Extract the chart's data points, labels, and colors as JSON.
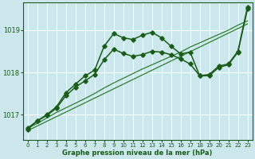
{
  "background_color": "#cce8ed",
  "plot_bg_color": "#cce8ed",
  "grid_color": "#aacccc",
  "xlabel": "Graphe pression niveau de la mer (hPa)",
  "xlim": [
    -0.5,
    23.5
  ],
  "ylim": [
    1016.4,
    1019.65
  ],
  "yticks": [
    1017,
    1018,
    1019
  ],
  "xticks": [
    0,
    1,
    2,
    3,
    4,
    5,
    6,
    7,
    8,
    9,
    10,
    11,
    12,
    13,
    14,
    15,
    16,
    17,
    18,
    19,
    20,
    21,
    22,
    23
  ],
  "series": [
    {
      "x": [
        0,
        1,
        2,
        3,
        4,
        5,
        6,
        7,
        8,
        9,
        10,
        11,
        12,
        13,
        14,
        15,
        16,
        17,
        18,
        19,
        20,
        21,
        22,
        23
      ],
      "y": [
        1016.62,
        1016.73,
        1016.84,
        1016.95,
        1017.06,
        1017.17,
        1017.28,
        1017.39,
        1017.5,
        1017.61,
        1017.72,
        1017.83,
        1017.94,
        1018.05,
        1018.16,
        1018.27,
        1018.38,
        1018.49,
        1018.6,
        1018.71,
        1018.82,
        1018.93,
        1019.04,
        1019.15
      ],
      "marker": null,
      "linewidth": 0.9,
      "color": "#2e7d2e",
      "linestyle": "-"
    },
    {
      "x": [
        0,
        1,
        2,
        3,
        4,
        5,
        6,
        7,
        8,
        9,
        10,
        11,
        12,
        13,
        14,
        15,
        16,
        17,
        18,
        19,
        20,
        21,
        22,
        23
      ],
      "y": [
        1016.68,
        1016.79,
        1016.92,
        1017.05,
        1017.16,
        1017.27,
        1017.38,
        1017.5,
        1017.63,
        1017.75,
        1017.86,
        1017.97,
        1018.08,
        1018.18,
        1018.28,
        1018.38,
        1018.48,
        1018.6,
        1018.7,
        1018.8,
        1018.9,
        1019.0,
        1019.12,
        1019.22
      ],
      "marker": null,
      "linewidth": 0.9,
      "color": "#2e7d2e",
      "linestyle": "-"
    },
    {
      "x": [
        0,
        1,
        2,
        3,
        4,
        5,
        6,
        7,
        8,
        9,
        10,
        11,
        12,
        13,
        14,
        15,
        16,
        17,
        18,
        19,
        20,
        21,
        22,
        23
      ],
      "y": [
        1016.68,
        1016.85,
        1016.98,
        1017.15,
        1017.45,
        1017.65,
        1017.8,
        1017.95,
        1018.3,
        1018.55,
        1018.45,
        1018.38,
        1018.42,
        1018.5,
        1018.48,
        1018.42,
        1018.32,
        1018.2,
        1017.92,
        1017.95,
        1018.15,
        1018.2,
        1018.5,
        1019.55
      ],
      "marker": "D",
      "markersize": 2.8,
      "linewidth": 1.1,
      "color": "#1a5c1a",
      "linestyle": "-"
    },
    {
      "x": [
        0,
        1,
        2,
        3,
        4,
        5,
        6,
        7,
        8,
        9,
        10,
        11,
        12,
        13,
        14,
        15,
        16,
        17,
        18,
        19,
        20,
        21,
        22,
        23
      ],
      "y": [
        1016.65,
        1016.85,
        1017.0,
        1017.18,
        1017.52,
        1017.72,
        1017.92,
        1018.05,
        1018.62,
        1018.92,
        1018.82,
        1018.78,
        1018.88,
        1018.95,
        1018.82,
        1018.62,
        1018.44,
        1018.48,
        1017.92,
        1017.92,
        1018.12,
        1018.18,
        1018.48,
        1019.5
      ],
      "marker": "D",
      "markersize": 2.8,
      "linewidth": 1.1,
      "color": "#1a5c1a",
      "linestyle": "-"
    }
  ]
}
